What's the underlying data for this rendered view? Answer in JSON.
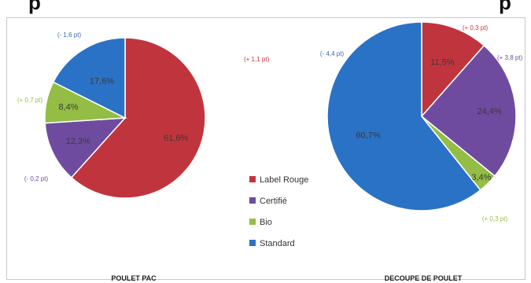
{
  "header_fragments": [
    "p",
    "p"
  ],
  "chart_data": [
    {
      "type": "pie",
      "title": "POULET PAC",
      "categories": [
        "Label Rouge",
        "Certifié",
        "Bio",
        "Standard"
      ],
      "values": [
        61.6,
        12.3,
        8.4,
        17.6
      ],
      "value_labels": [
        "61,6%",
        "12,3%",
        "8,4%",
        "17,6%"
      ],
      "change_labels": [
        "(+ 1,1 pt)",
        "(- 0,2 pt)",
        "(+ 0,7 pt)",
        "(- 1,6 pt)"
      ]
    },
    {
      "type": "pie",
      "title": "DECOUPE DE POULET",
      "categories": [
        "Label Rouge",
        "Certifié",
        "Bio",
        "Standard"
      ],
      "values": [
        11.5,
        24.4,
        3.4,
        60.7
      ],
      "value_labels": [
        "11,5%",
        "24,4%",
        "3,4%",
        "60,7%"
      ],
      "change_labels": [
        "(+ 0,3 pt)",
        "(+ 3,8 pt)",
        "(+ 0,3 pt)",
        "(- 4,4 pt)"
      ]
    }
  ],
  "legend": [
    {
      "label": "Label Rouge",
      "color": "#c0353d"
    },
    {
      "label": "Certifié",
      "color": "#6f4ba0"
    },
    {
      "label": "Bio",
      "color": "#93bd44"
    },
    {
      "label": "Standard",
      "color": "#2a72c6"
    }
  ],
  "change_colors": {
    "Label Rouge": "#c0353d",
    "Certifié": "#6f4ba0",
    "Bio": "#93bd44",
    "Standard": "#3a66b0"
  }
}
